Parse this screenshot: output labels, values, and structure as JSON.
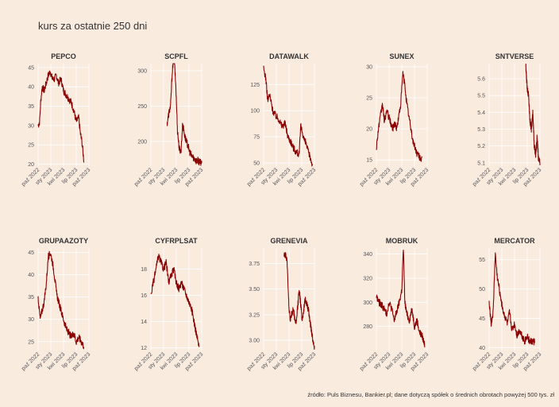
{
  "title": "kurs za ostatnie 250 dni",
  "caption": "źródło: Puls Biznesu, Bankier.pl; dane dotyczą spółek o średnich obrotach powyżej 500 tys. zł",
  "colors": {
    "background": "#faebdf",
    "line": "#8b0000",
    "grid": "#ffffff"
  },
  "chart_data": [
    {
      "type": "line",
      "title": "PEPCO",
      "x_tick_labels": [
        "paź 2022",
        "sty 2023",
        "kwi 2023",
        "lip 2023",
        "paź 2023"
      ],
      "y_ticks": [
        20,
        25,
        30,
        35,
        40,
        45
      ],
      "ylim": [
        19.5,
        46
      ],
      "x_start": 0.0,
      "anchors": [
        [
          0,
          30
        ],
        [
          0.03,
          31
        ],
        [
          0.05,
          36
        ],
        [
          0.08,
          40
        ],
        [
          0.12,
          39
        ],
        [
          0.16,
          41
        ],
        [
          0.2,
          43
        ],
        [
          0.24,
          44
        ],
        [
          0.28,
          42
        ],
        [
          0.32,
          42
        ],
        [
          0.36,
          43
        ],
        [
          0.4,
          41
        ],
        [
          0.45,
          42
        ],
        [
          0.5,
          39
        ],
        [
          0.55,
          38
        ],
        [
          0.6,
          37
        ],
        [
          0.65,
          36
        ],
        [
          0.7,
          34
        ],
        [
          0.75,
          31
        ],
        [
          0.8,
          32
        ],
        [
          0.83,
          28
        ],
        [
          0.86,
          26
        ],
        [
          0.9,
          21
        ]
      ]
    },
    {
      "type": "line",
      "title": "SCPFL",
      "x_tick_labels": [
        "paź 2022",
        "sty 2023",
        "kwi 2023",
        "lip 2023",
        "paź 2023"
      ],
      "y_ticks": [
        200,
        250,
        300
      ],
      "ylim": [
        165,
        310
      ],
      "x_start": 0.32,
      "anchors": [
        [
          0,
          225
        ],
        [
          0.05,
          240
        ],
        [
          0.1,
          250
        ],
        [
          0.15,
          300
        ],
        [
          0.2,
          320
        ],
        [
          0.25,
          280
        ],
        [
          0.3,
          215
        ],
        [
          0.35,
          190
        ],
        [
          0.4,
          185
        ],
        [
          0.45,
          225
        ],
        [
          0.5,
          210
        ],
        [
          0.55,
          200
        ],
        [
          0.6,
          195
        ],
        [
          0.65,
          185
        ],
        [
          0.7,
          180
        ],
        [
          0.75,
          178
        ],
        [
          0.8,
          175
        ],
        [
          0.85,
          172
        ],
        [
          0.9,
          173
        ],
        [
          0.95,
          170
        ],
        [
          1,
          170
        ]
      ]
    },
    {
      "type": "line",
      "title": "DATAWALK",
      "x_tick_labels": [
        "paź 2022",
        "sty 2023",
        "kwi 2023",
        "lip 2023",
        "paź 2023"
      ],
      "y_ticks": [
        50,
        75,
        100,
        125
      ],
      "ylim": [
        47,
        145
      ],
      "x_start": 0.0,
      "anchors": [
        [
          0,
          140
        ],
        [
          0.04,
          132
        ],
        [
          0.08,
          110
        ],
        [
          0.12,
          115
        ],
        [
          0.18,
          100
        ],
        [
          0.24,
          95
        ],
        [
          0.3,
          92
        ],
        [
          0.36,
          85
        ],
        [
          0.42,
          88
        ],
        [
          0.48,
          75
        ],
        [
          0.54,
          70
        ],
        [
          0.58,
          65
        ],
        [
          0.62,
          62
        ],
        [
          0.66,
          60
        ],
        [
          0.7,
          58
        ],
        [
          0.73,
          85
        ],
        [
          0.76,
          80
        ],
        [
          0.8,
          72
        ],
        [
          0.84,
          68
        ],
        [
          0.88,
          60
        ],
        [
          0.92,
          55
        ],
        [
          0.96,
          48
        ]
      ]
    },
    {
      "type": "line",
      "title": "SUNEX",
      "x_tick_labels": [
        "paź 2022",
        "sty 2023",
        "kwi 2023",
        "lip 2023",
        "paź 2023"
      ],
      "y_ticks": [
        15,
        20,
        25,
        30
      ],
      "ylim": [
        14,
        30.5
      ],
      "x_start": 0.0,
      "anchors": [
        [
          0,
          17
        ],
        [
          0.04,
          20
        ],
        [
          0.08,
          22
        ],
        [
          0.12,
          24
        ],
        [
          0.16,
          21
        ],
        [
          0.2,
          23
        ],
        [
          0.24,
          22
        ],
        [
          0.28,
          21
        ],
        [
          0.32,
          20
        ],
        [
          0.36,
          21
        ],
        [
          0.4,
          20
        ],
        [
          0.44,
          22
        ],
        [
          0.48,
          24
        ],
        [
          0.52,
          29
        ],
        [
          0.56,
          27
        ],
        [
          0.6,
          24
        ],
        [
          0.64,
          22
        ],
        [
          0.68,
          20
        ],
        [
          0.72,
          18
        ],
        [
          0.76,
          17
        ],
        [
          0.8,
          16
        ],
        [
          0.85,
          15.5
        ],
        [
          0.9,
          15
        ]
      ]
    },
    {
      "type": "line",
      "title": "SNTVERSE",
      "x_tick_labels": [
        "paź 2022",
        "sty 2023",
        "kwi 2023",
        "lip 2023",
        "paź 2023"
      ],
      "y_ticks": [
        5.1,
        5.2,
        5.3,
        5.4,
        5.5,
        5.6
      ],
      "ylim": [
        5.08,
        5.69
      ],
      "x_start": 0.72,
      "anchors": [
        [
          0,
          5.68
        ],
        [
          0.1,
          5.55
        ],
        [
          0.2,
          5.5
        ],
        [
          0.3,
          5.35
        ],
        [
          0.4,
          5.3
        ],
        [
          0.5,
          5.4
        ],
        [
          0.6,
          5.2
        ],
        [
          0.7,
          5.15
        ],
        [
          0.8,
          5.25
        ],
        [
          0.9,
          5.12
        ],
        [
          1,
          5.1
        ]
      ]
    },
    {
      "type": "line",
      "title": "GRUPAAZOTY",
      "x_tick_labels": [
        "paź 2022",
        "sty 2023",
        "kwi 2023",
        "lip 2023",
        "paź 2023"
      ],
      "y_ticks": [
        25,
        30,
        35,
        40,
        45
      ],
      "ylim": [
        23,
        46
      ],
      "x_start": 0.0,
      "anchors": [
        [
          0,
          35
        ],
        [
          0.04,
          30
        ],
        [
          0.08,
          32
        ],
        [
          0.12,
          34
        ],
        [
          0.16,
          38
        ],
        [
          0.2,
          44
        ],
        [
          0.24,
          45
        ],
        [
          0.28,
          43
        ],
        [
          0.32,
          40
        ],
        [
          0.36,
          36
        ],
        [
          0.4,
          34
        ],
        [
          0.45,
          32
        ],
        [
          0.5,
          30
        ],
        [
          0.55,
          28
        ],
        [
          0.6,
          27
        ],
        [
          0.65,
          26
        ],
        [
          0.7,
          27
        ],
        [
          0.75,
          25
        ],
        [
          0.8,
          26
        ],
        [
          0.85,
          25
        ],
        [
          0.9,
          24
        ]
      ]
    },
    {
      "type": "line",
      "title": "CYFRPLSAT",
      "x_tick_labels": [
        "paź 2022",
        "sty 2023",
        "kwi 2023",
        "lip 2023",
        "paź 2023"
      ],
      "y_ticks": [
        12,
        14,
        16,
        18
      ],
      "ylim": [
        11.8,
        19.6
      ],
      "x_start": 0.0,
      "anchors": [
        [
          0,
          16
        ],
        [
          0.05,
          17
        ],
        [
          0.1,
          18
        ],
        [
          0.15,
          19
        ],
        [
          0.2,
          18.5
        ],
        [
          0.25,
          18
        ],
        [
          0.3,
          18.5
        ],
        [
          0.35,
          17
        ],
        [
          0.4,
          17.5
        ],
        [
          0.45,
          18
        ],
        [
          0.5,
          17
        ],
        [
          0.55,
          16.5
        ],
        [
          0.6,
          17
        ],
        [
          0.65,
          16.5
        ],
        [
          0.7,
          16
        ],
        [
          0.75,
          15.5
        ],
        [
          0.8,
          15
        ],
        [
          0.85,
          14
        ],
        [
          0.9,
          13
        ],
        [
          0.95,
          12
        ]
      ]
    },
    {
      "type": "line",
      "title": "GRENEVIA",
      "x_tick_labels": [
        "paź 2022",
        "sty 2023",
        "kwi 2023",
        "lip 2023",
        "paź 2023"
      ],
      "y_ticks": [
        3.0,
        3.25,
        3.5,
        3.75
      ],
      "ylim": [
        2.9,
        3.9
      ],
      "x_start": 0.4,
      "anchors": [
        [
          0,
          3.85
        ],
        [
          0.1,
          3.8
        ],
        [
          0.15,
          3.4
        ],
        [
          0.2,
          3.2
        ],
        [
          0.3,
          3.3
        ],
        [
          0.4,
          3.15
        ],
        [
          0.5,
          3.5
        ],
        [
          0.6,
          3.2
        ],
        [
          0.7,
          3.4
        ],
        [
          0.8,
          3.3
        ],
        [
          0.9,
          3.1
        ],
        [
          1,
          2.92
        ]
      ]
    },
    {
      "type": "line",
      "title": "MOBRUK",
      "x_tick_labels": [
        "paź 2022",
        "sty 2023",
        "kwi 2023",
        "lip 2023",
        "paź 2023"
      ],
      "y_ticks": [
        280,
        300,
        320,
        340
      ],
      "ylim": [
        260,
        345
      ],
      "x_start": 0.0,
      "anchors": [
        [
          0,
          305
        ],
        [
          0.05,
          300
        ],
        [
          0.1,
          298
        ],
        [
          0.15,
          295
        ],
        [
          0.2,
          290
        ],
        [
          0.25,
          300
        ],
        [
          0.3,
          295
        ],
        [
          0.35,
          285
        ],
        [
          0.4,
          292
        ],
        [
          0.45,
          300
        ],
        [
          0.5,
          310
        ],
        [
          0.53,
          345
        ],
        [
          0.56,
          300
        ],
        [
          0.6,
          290
        ],
        [
          0.65,
          285
        ],
        [
          0.7,
          295
        ],
        [
          0.75,
          280
        ],
        [
          0.8,
          285
        ],
        [
          0.85,
          275
        ],
        [
          0.9,
          272
        ],
        [
          0.95,
          265
        ]
      ]
    },
    {
      "type": "line",
      "title": "MERCATOR",
      "x_tick_labels": [
        "paź 2022",
        "sty 2023",
        "kwi 2023",
        "lip 2023",
        "paź 2023"
      ],
      "y_ticks": [
        40,
        45,
        50,
        55
      ],
      "ylim": [
        39.5,
        57
      ],
      "x_start": 0.0,
      "anchors": [
        [
          0,
          48
        ],
        [
          0.04,
          44
        ],
        [
          0.08,
          46
        ],
        [
          0.12,
          56
        ],
        [
          0.16,
          52
        ],
        [
          0.2,
          50
        ],
        [
          0.24,
          48
        ],
        [
          0.28,
          46
        ],
        [
          0.32,
          45
        ],
        [
          0.36,
          44
        ],
        [
          0.4,
          46
        ],
        [
          0.45,
          43
        ],
        [
          0.5,
          44
        ],
        [
          0.55,
          42
        ],
        [
          0.6,
          43
        ],
        [
          0.65,
          42
        ],
        [
          0.7,
          41
        ],
        [
          0.75,
          42
        ],
        [
          0.8,
          41
        ],
        [
          0.85,
          41
        ],
        [
          0.9,
          41
        ]
      ]
    }
  ]
}
